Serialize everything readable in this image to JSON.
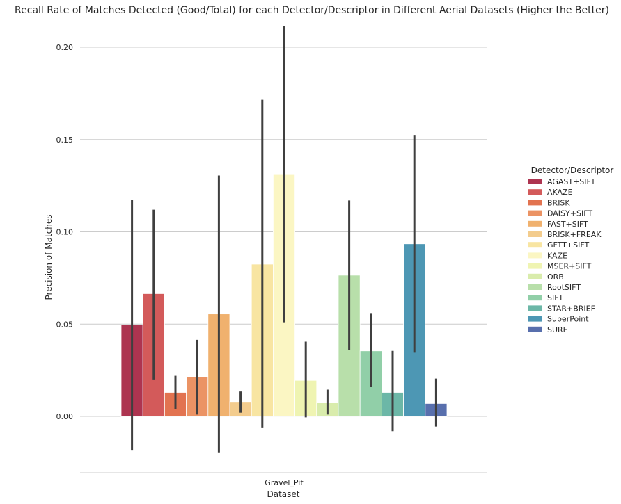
{
  "chart_data": {
    "type": "bar",
    "title": "Recall Rate of Matches Detected (Good/Total) for each Detector/Descriptor in Different Aerial Datasets (Higher the Better)",
    "xlabel": "Dataset",
    "ylabel": "Precision of Matches",
    "categories": [
      "Gravel_Pit"
    ],
    "ylim": [
      -0.03,
      0.21
    ],
    "yticks": [
      0.0,
      0.05,
      0.1,
      0.15,
      0.2
    ],
    "ytick_labels": [
      "0.00",
      "0.05",
      "0.10",
      "0.15",
      "0.20"
    ],
    "grid": "horizontal",
    "legend_title": "Detector/Descriptor",
    "legend_position": "right",
    "series": [
      {
        "name": "AGAST+SIFT",
        "values": [
          0.0495
        ],
        "ci": [
          [
            -0.0185,
            0.1175
          ]
        ],
        "color": "#ad3450"
      },
      {
        "name": "AKAZE",
        "values": [
          0.0665
        ],
        "ci": [
          [
            0.02,
            0.112
          ]
        ],
        "color": "#d35a5a"
      },
      {
        "name": "BRISK",
        "values": [
          0.013
        ],
        "ci": [
          [
            0.004,
            0.022
          ]
        ],
        "color": "#e27350"
      },
      {
        "name": "DAISY+SIFT",
        "values": [
          0.0215
        ],
        "ci": [
          [
            0.001,
            0.0415
          ]
        ],
        "color": "#eb9364"
      },
      {
        "name": "FAST+SIFT",
        "values": [
          0.0555
        ],
        "ci": [
          [
            -0.0195,
            0.1305
          ]
        ],
        "color": "#f0b16e"
      },
      {
        "name": "BRISK+FREAK",
        "values": [
          0.008
        ],
        "ci": [
          [
            0.002,
            0.0135
          ]
        ],
        "color": "#f3cc8d"
      },
      {
        "name": "GFTT+SIFT",
        "values": [
          0.0825
        ],
        "ci": [
          [
            -0.006,
            0.1715
          ]
        ],
        "color": "#f8e5a2"
      },
      {
        "name": "KAZE",
        "values": [
          0.131
        ],
        "ci": [
          [
            0.051,
            0.2115
          ]
        ],
        "color": "#fbf6c3"
      },
      {
        "name": "MSER+SIFT",
        "values": [
          0.0195
        ],
        "ci": [
          [
            -0.0005,
            0.0405
          ]
        ],
        "color": "#eff4b2"
      },
      {
        "name": "ORB",
        "values": [
          0.0075
        ],
        "ci": [
          [
            0.001,
            0.0145
          ]
        ],
        "color": "#d9ecac"
      },
      {
        "name": "RootSIFT",
        "values": [
          0.0765
        ],
        "ci": [
          [
            0.036,
            0.117
          ]
        ],
        "color": "#b8dfaa"
      },
      {
        "name": "SIFT",
        "values": [
          0.0355
        ],
        "ci": [
          [
            0.016,
            0.056
          ]
        ],
        "color": "#91cfa8"
      },
      {
        "name": "STAR+BRIEF",
        "values": [
          0.013
        ],
        "ci": [
          [
            -0.008,
            0.0355
          ]
        ],
        "color": "#6cb7a7"
      },
      {
        "name": "SuperPoint",
        "values": [
          0.0935
        ],
        "ci": [
          [
            0.0345,
            0.1525
          ]
        ],
        "color": "#4d97b4"
      },
      {
        "name": "SURF",
        "values": [
          0.007
        ],
        "ci": [
          [
            -0.0055,
            0.0205
          ]
        ],
        "color": "#586fad"
      }
    ]
  }
}
